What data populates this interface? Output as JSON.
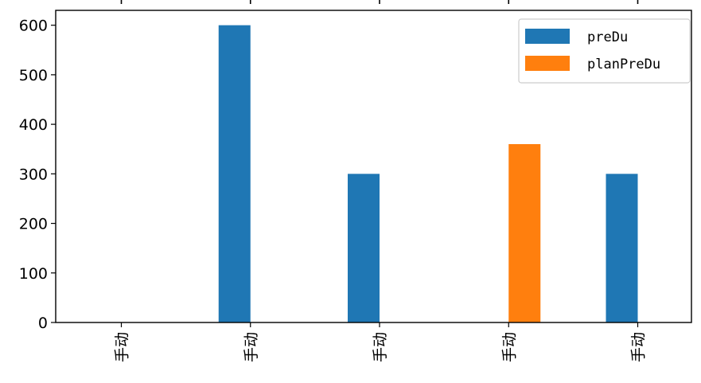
{
  "chart_data": {
    "type": "bar",
    "title": "",
    "xlabel": "",
    "ylabel": "",
    "categories": [
      "手动",
      "手动",
      "手动",
      "手动",
      "手动"
    ],
    "series": [
      {
        "name": "preDu",
        "color": "#1f77b4",
        "values": [
          0,
          600,
          300,
          0,
          300
        ]
      },
      {
        "name": "planPreDu",
        "color": "#ff7f0e",
        "values": [
          0,
          0,
          0,
          360,
          0
        ]
      }
    ],
    "ylim": [
      0,
      630
    ],
    "yticks": [
      "0",
      "100",
      "200",
      "300",
      "400",
      "500",
      "600"
    ],
    "grid": false,
    "legend_position": "top-right"
  }
}
